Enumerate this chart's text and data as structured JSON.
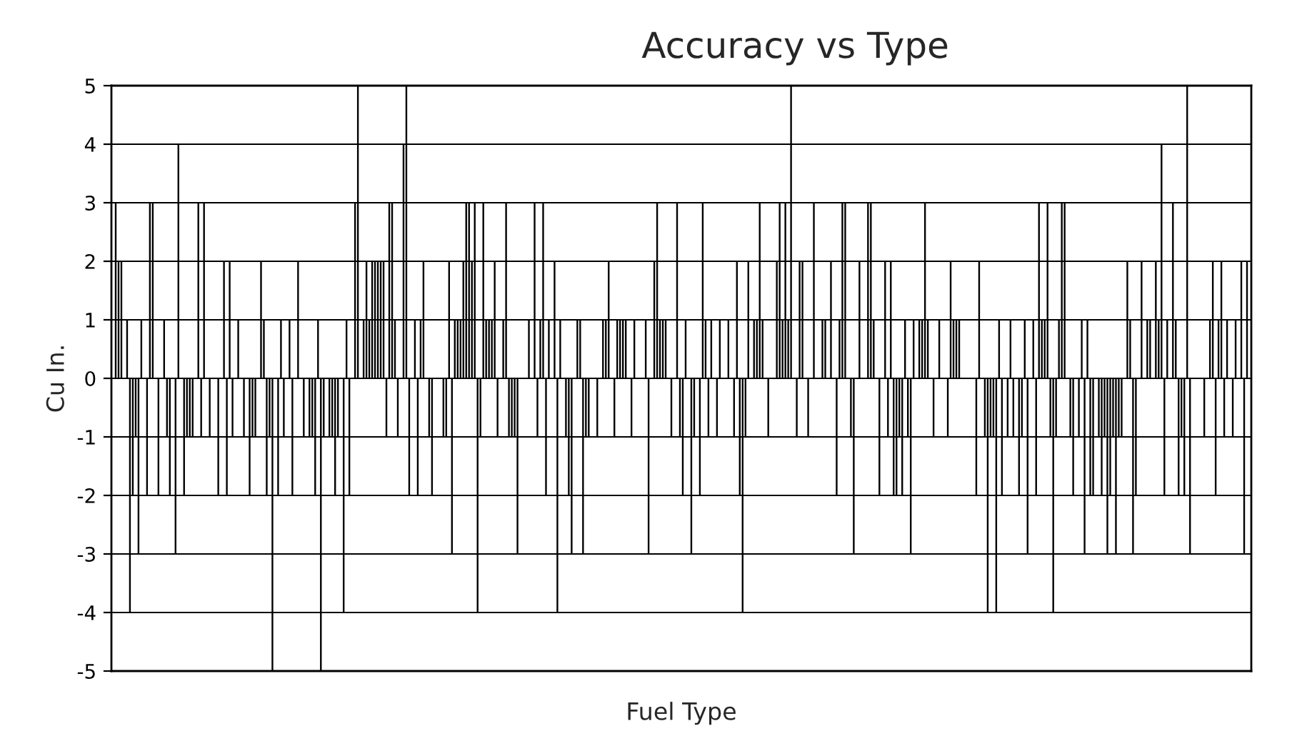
{
  "chart_data": {
    "type": "bar",
    "title": "Accuracy vs Type",
    "xlabel": "Fuel Type",
    "ylabel": "Cu In.",
    "categories": [
      null,
      null,
      null,
      null,
      null,
      null,
      null,
      null,
      null,
      null,
      null,
      null,
      null,
      null,
      null,
      null,
      null,
      null,
      null,
      null,
      null,
      null,
      null,
      null,
      null,
      null,
      null,
      null,
      null,
      null,
      null,
      null,
      null,
      null,
      null,
      null,
      null,
      null,
      null,
      null,
      null,
      null,
      null,
      null,
      null,
      null,
      null,
      null,
      null,
      null,
      null,
      null,
      null,
      null,
      null,
      null,
      null,
      null,
      null,
      null,
      null,
      null,
      null,
      null,
      null,
      null,
      null,
      null,
      null,
      null,
      null,
      null,
      null,
      null,
      null,
      null,
      null,
      null,
      null,
      null,
      null,
      null,
      null,
      null,
      null,
      null,
      null,
      null,
      null,
      null,
      null,
      null,
      null,
      null,
      null,
      null,
      null,
      null,
      null,
      null,
      null,
      null,
      null,
      null,
      null,
      null,
      null,
      null,
      null,
      null,
      null,
      null,
      null,
      null,
      null,
      null,
      null,
      null,
      null,
      null,
      null,
      null,
      null,
      null,
      null,
      null,
      null,
      null,
      null,
      null,
      null,
      null,
      null,
      null,
      null,
      null,
      null,
      null,
      null,
      null,
      null,
      null,
      null,
      null,
      null,
      null,
      null,
      null,
      null,
      null,
      null,
      null,
      null,
      null,
      null,
      null,
      null,
      null,
      null,
      null,
      null,
      null,
      null,
      null,
      null,
      null,
      null,
      null,
      null,
      null,
      null,
      null,
      null,
      null,
      null,
      null,
      null,
      null,
      null,
      null,
      null,
      null,
      null,
      null,
      null,
      null,
      null,
      null,
      null,
      null,
      null,
      null,
      null,
      null,
      null,
      null,
      null,
      null,
      null,
      null,
      null,
      null,
      null,
      null,
      null,
      null,
      null,
      null,
      null,
      null,
      null,
      null,
      null,
      null,
      null,
      null,
      null,
      null,
      null,
      null,
      null,
      null,
      null,
      null,
      null,
      null,
      null,
      null,
      null,
      null,
      null,
      null,
      null,
      null,
      null,
      null,
      null,
      null,
      null,
      null,
      null,
      null,
      null,
      null,
      null,
      null,
      null,
      null,
      null,
      null,
      null,
      null,
      null,
      null,
      null,
      null,
      null,
      null,
      null,
      null,
      null,
      null,
      null,
      null,
      null,
      null,
      null,
      null,
      null,
      null,
      null,
      null,
      null,
      null,
      null,
      null,
      null,
      null,
      null,
      null,
      null,
      null,
      null,
      null,
      null,
      null,
      null,
      null,
      null,
      null,
      null,
      null,
      null,
      null,
      null,
      null,
      null,
      null,
      null,
      null,
      null,
      null,
      null,
      null,
      null,
      null,
      null,
      null,
      null,
      null,
      null,
      null,
      null,
      null,
      null,
      null,
      null,
      null,
      null,
      null,
      null,
      null,
      null,
      null,
      null,
      null,
      null,
      null,
      null,
      null,
      null,
      null,
      null,
      null,
      null,
      null,
      null,
      null,
      null,
      null,
      null,
      null,
      null,
      null,
      null,
      null,
      null,
      null,
      null,
      null,
      null,
      null,
      null,
      null,
      null,
      null,
      null,
      null,
      null,
      null,
      null,
      null,
      null,
      null,
      null,
      null,
      null,
      null,
      null,
      null,
      null,
      null,
      null,
      null,
      null,
      null,
      null,
      null,
      null,
      null,
      null,
      null,
      null,
      null,
      null,
      null,
      null,
      null,
      null,
      null,
      null,
      null,
      null,
      null,
      null,
      null,
      null,
      null,
      null,
      null
    ],
    "values": [
      0,
      3,
      2,
      2,
      0,
      1,
      -4,
      -2,
      -1,
      -3,
      1,
      0,
      -2,
      3,
      3,
      0,
      -2,
      0,
      1,
      -1,
      -2,
      0,
      -3,
      4,
      0,
      -2,
      -1,
      -1,
      -1,
      0,
      3,
      -1,
      3,
      0,
      -1,
      0,
      0,
      -2,
      0,
      2,
      -2,
      2,
      -1,
      0,
      1,
      0,
      -1,
      0,
      -2,
      -1,
      -1,
      0,
      2,
      1,
      -2,
      -1,
      -5,
      0,
      -2,
      1,
      -1,
      0,
      1,
      -2,
      0,
      2,
      0,
      -1,
      0,
      -1,
      -1,
      -2,
      1,
      -5,
      -1,
      0,
      -1,
      -1,
      -2,
      -1,
      0,
      -4,
      1,
      -2,
      0,
      3,
      5,
      0,
      1,
      2,
      1,
      2,
      2,
      2,
      2,
      2,
      -1,
      3,
      3,
      1,
      -1,
      0,
      4,
      5,
      -2,
      0,
      1,
      -2,
      1,
      2,
      0,
      -1,
      -2,
      0,
      0,
      0,
      -1,
      -1,
      2,
      -3,
      1,
      1,
      1,
      2,
      3,
      3,
      2,
      3,
      -4,
      -1,
      3,
      1,
      1,
      1,
      2,
      -1,
      0,
      1,
      3,
      -1,
      -1,
      -1,
      -3,
      0,
      0,
      0,
      1,
      0,
      3,
      -1,
      1,
      3,
      -2,
      1,
      0,
      2,
      -4,
      1,
      0,
      -1,
      -2,
      -3,
      0,
      1,
      1,
      -3,
      -1,
      -1,
      0,
      0,
      -1,
      0,
      1,
      1,
      2,
      0,
      -1,
      1,
      1,
      1,
      1,
      0,
      -1,
      1,
      0,
      0,
      0,
      1,
      -3,
      0,
      2,
      3,
      1,
      1,
      1,
      0,
      -1,
      0,
      3,
      -1,
      -2,
      1,
      0,
      -3,
      -1,
      0,
      -2,
      3,
      1,
      -1,
      1,
      0,
      -1,
      1,
      0,
      0,
      1,
      0,
      -1,
      2,
      -2,
      -4,
      -1,
      2,
      0,
      1,
      1,
      3,
      1,
      0,
      -1,
      0,
      0,
      2,
      3,
      1,
      3,
      1,
      5,
      0,
      -1,
      2,
      2,
      0,
      -1,
      0,
      3,
      0,
      0,
      1,
      1,
      0,
      2,
      0,
      -2,
      1,
      3,
      3,
      0,
      -1,
      -3,
      0,
      2,
      0,
      0,
      3,
      3,
      1,
      0,
      -2,
      0,
      2,
      -1,
      2,
      -2,
      -2,
      -1,
      -2,
      1,
      -1,
      -3,
      1,
      0,
      1,
      1,
      3,
      1,
      0,
      -1,
      0,
      1,
      0,
      0,
      -1,
      2,
      1,
      1,
      1,
      0,
      0,
      0,
      0,
      0,
      -2,
      2,
      0,
      -1,
      -4,
      -1,
      -1,
      -4,
      1,
      -2,
      0,
      -1,
      1,
      -1,
      0,
      -2,
      -1,
      1,
      -3,
      0,
      1,
      -2,
      3,
      1,
      1,
      3,
      -1,
      -4,
      -1,
      1,
      3,
      3,
      0,
      -1,
      -2,
      0,
      -1,
      1,
      -3,
      1,
      -2,
      -2,
      0,
      -1,
      -2,
      -1,
      -3,
      -2,
      -1,
      -3,
      -1,
      -1,
      0,
      2,
      1,
      -3,
      -2,
      0,
      2,
      0,
      1,
      1,
      0,
      2,
      1,
      4,
      -2,
      1,
      0,
      3,
      1,
      -2,
      -1,
      -2,
      5,
      -3,
      0,
      0,
      0,
      0,
      -1,
      0,
      1,
      2,
      -2,
      1,
      2,
      -1,
      1,
      0,
      -1,
      1,
      0,
      2,
      -3,
      2,
      0
    ],
    "color": "#000000",
    "ylim": [
      -5,
      5
    ],
    "yticks": [
      -5,
      -4,
      -3,
      -2,
      -1,
      0,
      1,
      2,
      3,
      4,
      5
    ],
    "grid": "y"
  }
}
